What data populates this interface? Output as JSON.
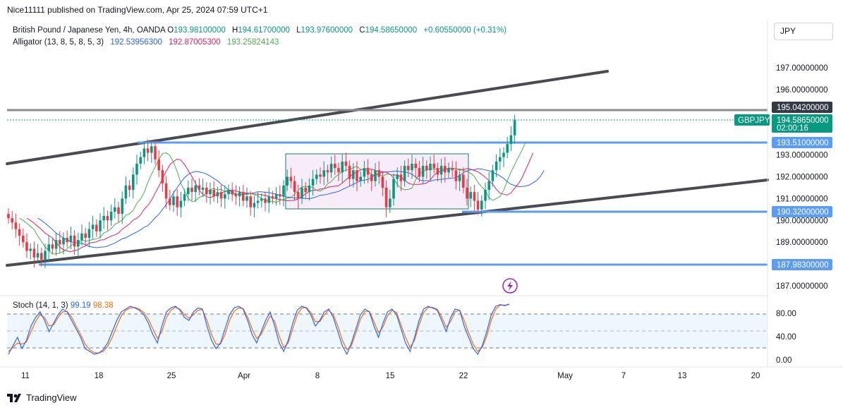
{
  "header": {
    "published": "Nice11111 published on TradingView.com, Apr 25, 2024 07:59 UTC+1",
    "symbol": "British Pound / Japanese Yen, 4h, OANDA",
    "open_label": "O",
    "open": "193.98100000",
    "high_label": "H",
    "high": "194.61700000",
    "low_label": "L",
    "low": "193.97600000",
    "close_label": "C",
    "close": "194.58650000",
    "change": "+0.60550000 (+0.31%)",
    "indicator": "Alligator (13, 8, 5, 8, 5, 3)",
    "alligator_jaw": "192.53956300",
    "alligator_teeth": "192.87005300",
    "alligator_lips": "193.25824143",
    "currency_button": "JPY"
  },
  "stoch": {
    "label": "Stoch (14, 1, 3)",
    "k": "99.19",
    "d": "98.38",
    "ticks": [
      "80.00",
      "40.00",
      "0.00"
    ]
  },
  "footer": {
    "brand": "TradingView"
  },
  "chart_data": {
    "type": "candlestick",
    "symbol": "GBPJPY",
    "timeframe": "4h",
    "x_ticks": [
      "11",
      "18",
      "25",
      "Apr",
      "8",
      "15",
      "22",
      "May",
      "7",
      "13",
      "20"
    ],
    "y_ticks": [
      "197.00000000",
      "196.00000000",
      "193.00000000",
      "192.00000000",
      "191.00000000",
      "190.00000000",
      "189.00000000",
      "187.00000000"
    ],
    "ylim": [
      186.6,
      198.0
    ],
    "price_labels": [
      {
        "label": "",
        "value": "195.04200000",
        "price": 195.042,
        "color": "#363a45"
      },
      {
        "label": "GBPJPY",
        "value": "194.58650000",
        "price": 194.5865,
        "color": "#089981",
        "sub": "02:00:16"
      },
      {
        "label": "",
        "value": "193.51000000",
        "price": 193.51,
        "color": "#5b9cf6"
      },
      {
        "label": "",
        "value": "190.32000000",
        "price": 190.32,
        "color": "#5b9cf6"
      },
      {
        "label": "",
        "value": "187.98300000",
        "price": 187.983,
        "color": "#5b9cf6"
      }
    ],
    "candles_close": [
      190.1,
      189.9,
      189.6,
      189.3,
      189.0,
      188.6,
      188.7,
      188.3,
      188.5,
      188.2,
      188.6,
      188.9,
      188.7,
      189.1,
      188.9,
      189.2,
      189.0,
      189.3,
      188.8,
      189.1,
      189.4,
      189.2,
      189.6,
      189.8,
      189.5,
      190.0,
      190.2,
      190.0,
      190.4,
      190.6,
      190.3,
      191.0,
      191.6,
      191.4,
      192.1,
      192.6,
      192.9,
      193.3,
      193.1,
      193.4,
      192.8,
      192.3,
      191.7,
      191.0,
      190.7,
      191.1,
      190.6,
      190.9,
      191.2,
      191.5,
      191.3,
      191.6,
      191.4,
      191.5,
      191.2,
      191.4,
      191.1,
      191.3,
      191.0,
      191.2,
      191.4,
      191.2,
      191.1,
      191.3,
      190.9,
      191.1,
      190.6,
      190.8,
      190.9,
      191.0,
      190.8,
      191.1,
      191.0,
      191.2,
      191.1,
      191.6,
      192.0,
      191.8,
      191.3,
      191.0,
      191.5,
      191.3,
      191.6,
      191.9,
      192.1,
      192.0,
      192.3,
      192.2,
      192.6,
      192.4,
      192.2,
      192.7,
      192.5,
      191.9,
      192.3,
      191.8,
      192.0,
      192.4,
      192.1,
      191.8,
      192.3,
      192.0,
      191.5,
      190.6,
      191.0,
      191.9,
      192.1,
      191.8,
      192.5,
      192.3,
      192.6,
      192.4,
      192.0,
      192.5,
      192.3,
      192.6,
      192.4,
      192.1,
      192.5,
      192.2,
      192.4,
      192.3,
      191.8,
      192.1,
      191.5,
      191.0,
      191.3,
      190.9,
      190.5,
      190.9,
      191.4,
      191.8,
      192.3,
      192.7,
      192.9,
      193.1,
      193.5,
      193.9,
      194.5865
    ],
    "x_candle_start": 12,
    "x_candle_step": 5.2,
    "stoch_k": [
      10,
      25,
      40,
      20,
      35,
      60,
      75,
      85,
      70,
      50,
      65,
      80,
      90,
      85,
      70,
      55,
      40,
      20,
      15,
      10,
      12,
      18,
      30,
      50,
      70,
      85,
      90,
      95,
      92,
      88,
      80,
      65,
      45,
      30,
      60,
      85,
      92,
      95,
      88,
      75,
      70,
      85,
      92,
      90,
      60,
      35,
      20,
      30,
      55,
      80,
      92,
      95,
      90,
      70,
      45,
      30,
      50,
      70,
      85,
      60,
      30,
      15,
      35,
      65,
      88,
      95,
      92,
      80,
      60,
      70,
      85,
      90,
      75,
      50,
      25,
      10,
      30,
      55,
      80,
      90,
      85,
      60,
      40,
      65,
      85,
      90,
      80,
      55,
      30,
      15,
      40,
      70,
      90,
      95,
      92,
      88,
      70,
      50,
      75,
      90,
      88,
      60,
      40,
      20,
      10,
      25,
      50,
      80,
      95,
      98,
      96,
      99
    ],
    "stoch_d": [
      15,
      22,
      30,
      28,
      32,
      50,
      68,
      80,
      75,
      60,
      62,
      75,
      85,
      86,
      76,
      60,
      45,
      28,
      18,
      13,
      12,
      15,
      24,
      40,
      60,
      78,
      88,
      92,
      93,
      90,
      84,
      72,
      55,
      38,
      50,
      75,
      88,
      93,
      90,
      80,
      74,
      80,
      88,
      89,
      70,
      45,
      28,
      28,
      45,
      70,
      86,
      92,
      91,
      76,
      55,
      38,
      45,
      62,
      78,
      68,
      42,
      22,
      30,
      55,
      80,
      92,
      93,
      84,
      68,
      68,
      80,
      88,
      80,
      60,
      35,
      18,
      25,
      48,
      72,
      86,
      86,
      68,
      48,
      58,
      78,
      88,
      84,
      62,
      40,
      22,
      35,
      62,
      84,
      93,
      93,
      90,
      76,
      58,
      68,
      85,
      88,
      70,
      48,
      28,
      15,
      22,
      42,
      70,
      90,
      97,
      97,
      98
    ]
  }
}
